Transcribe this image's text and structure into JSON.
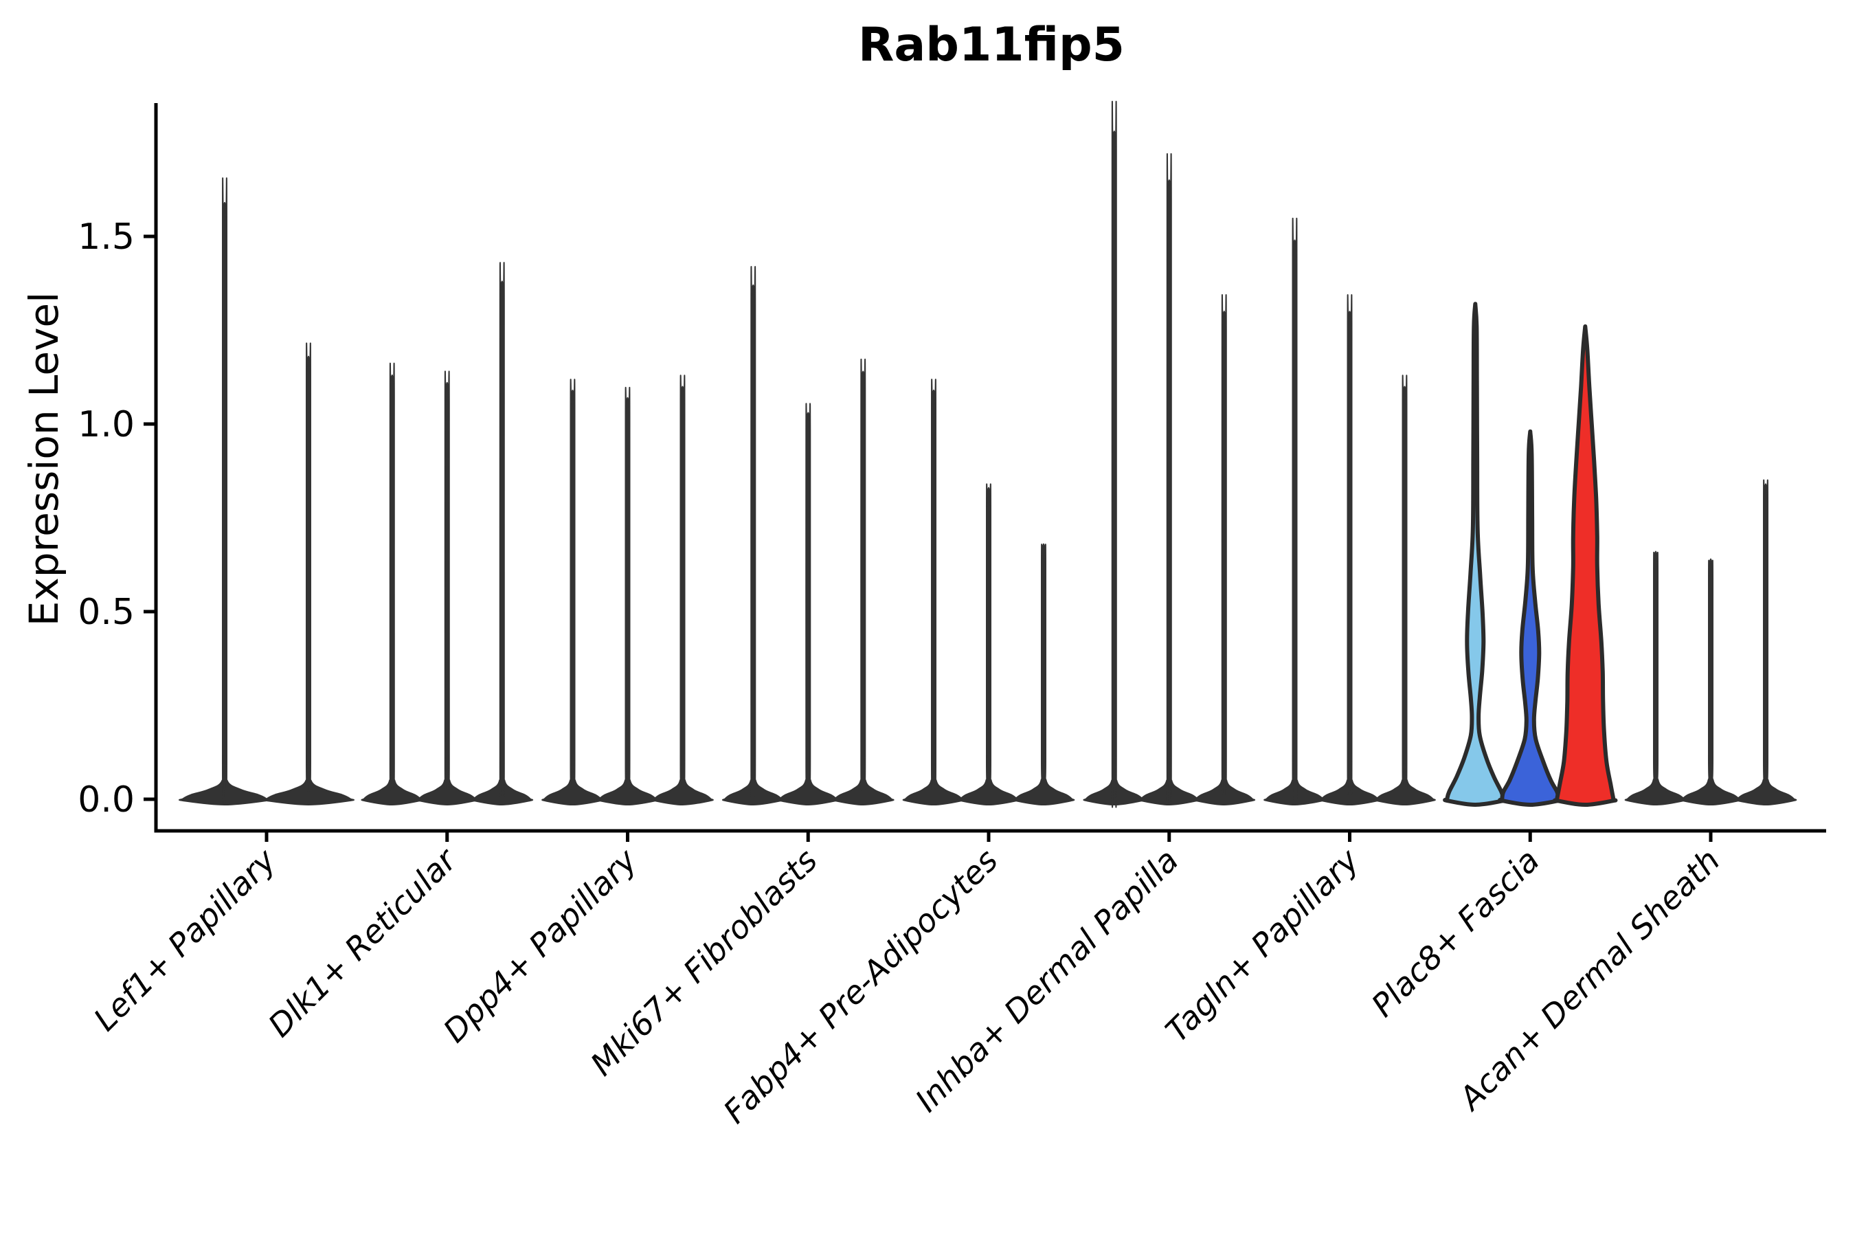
{
  "title": "Rab11fip5",
  "y_axis": {
    "label": "Expression Level",
    "tick_labels": [
      "0.0",
      "0.5",
      "1.0",
      "1.5"
    ]
  },
  "chart_data": {
    "type": "violin",
    "title": "Rab11fip5",
    "xlabel": "",
    "ylabel": "Expression Level",
    "ylim": [
      0,
      1.85
    ],
    "y_ticks": [
      0,
      0.5,
      1.0,
      1.5
    ],
    "y_tick_labels": [
      "0.0",
      "0.5",
      "1.0",
      "1.5"
    ],
    "grid": "off",
    "legend": "none",
    "line_color": "#333333",
    "outline_color": "#2b2b2b",
    "highlight_colors": [
      "#85c8ea",
      "#3b63d9",
      "#ee2e28"
    ],
    "categories": [
      "Lef1+ Papillary",
      "Dlk1+ Reticular",
      "Dpp4+ Papillary",
      "Mki67+ Fibroblasts",
      "Fabp4+ Pre-Adipocytes",
      "Inhba+ Dermal Papilla",
      "Tagln+ Papillary",
      "Plac8+ Fascia",
      "Acan+ Dermal Sheath"
    ],
    "groups": [
      {
        "category": "Lef1+ Papillary",
        "violins": [
          {
            "max": 1.59
          },
          {
            "max": 1.18
          }
        ]
      },
      {
        "category": "Dlk1+ Reticular",
        "violins": [
          {
            "max": 1.13
          },
          {
            "max": 1.11
          },
          {
            "max": 1.38
          }
        ]
      },
      {
        "category": "Dpp4+ Papillary",
        "violins": [
          {
            "max": 1.09
          },
          {
            "max": 1.07
          },
          {
            "max": 1.1
          }
        ]
      },
      {
        "category": "Mki67+ Fibroblasts",
        "violins": [
          {
            "max": 1.37
          },
          {
            "max": 1.03
          },
          {
            "max": 1.14
          }
        ]
      },
      {
        "category": "Fabp4+ Pre-Adipocytes",
        "violins": [
          {
            "max": 1.09
          },
          {
            "max": 0.83
          },
          {
            "max": 0.68
          }
        ]
      },
      {
        "category": "Inhba+ Dermal Papilla",
        "violins": [
          {
            "max": 1.78
          },
          {
            "max": 1.65
          },
          {
            "max": 1.3
          }
        ]
      },
      {
        "category": "Tagln+ Papillary",
        "violins": [
          {
            "max": 1.49
          },
          {
            "max": 1.3
          },
          {
            "max": 1.1
          }
        ]
      },
      {
        "category": "Plac8+ Fascia",
        "violins": [
          {
            "max": 1.32,
            "fill": "#85c8ea",
            "profile": [
              [
                1.32,
                0
              ],
              [
                1.26,
                2.0
              ],
              [
                1.1,
                2.4
              ],
              [
                0.9,
                2.8
              ],
              [
                0.72,
                3.4
              ],
              [
                0.6,
                7.0
              ],
              [
                0.5,
                10.5
              ],
              [
                0.42,
                12.0
              ],
              [
                0.34,
                10.0
              ],
              [
                0.27,
                6.5
              ],
              [
                0.22,
                4.8
              ],
              [
                0.17,
                6.5
              ],
              [
                0.11,
                16.0
              ],
              [
                0.06,
                27.0
              ],
              [
                0.02,
                38.0
              ],
              [
                0.001,
                41.0
              ]
            ]
          },
          {
            "max": 0.98,
            "fill": "#3b63d9",
            "profile": [
              [
                0.98,
                0
              ],
              [
                0.92,
                2.2
              ],
              [
                0.75,
                2.8
              ],
              [
                0.62,
                3.4
              ],
              [
                0.53,
                7.0
              ],
              [
                0.45,
                11.5
              ],
              [
                0.39,
                13.0
              ],
              [
                0.32,
                11.0
              ],
              [
                0.26,
                7.5
              ],
              [
                0.21,
                5.5
              ],
              [
                0.16,
                8.0
              ],
              [
                0.1,
                19.0
              ],
              [
                0.05,
                30.0
              ],
              [
                0.02,
                39.0
              ],
              [
                0.001,
                41.0
              ]
            ]
          },
          {
            "max": 1.26,
            "fill": "#ee2e28",
            "profile": [
              [
                1.26,
                0
              ],
              [
                1.2,
                3.0
              ],
              [
                1.1,
                6.0
              ],
              [
                1.0,
                9.5
              ],
              [
                0.9,
                13.0
              ],
              [
                0.8,
                16.0
              ],
              [
                0.7,
                17.5
              ],
              [
                0.62,
                17.5
              ],
              [
                0.52,
                19.5
              ],
              [
                0.42,
                23.5
              ],
              [
                0.34,
                25.5
              ],
              [
                0.26,
                26.0
              ],
              [
                0.18,
                27.5
              ],
              [
                0.1,
                31.0
              ],
              [
                0.04,
                37.0
              ],
              [
                0.001,
                41.0
              ]
            ]
          }
        ]
      },
      {
        "category": "Acan+ Dermal Sheath",
        "violins": [
          {
            "max": 0.66
          },
          {
            "max": 0.64
          },
          {
            "max": 0.84
          }
        ]
      }
    ]
  }
}
